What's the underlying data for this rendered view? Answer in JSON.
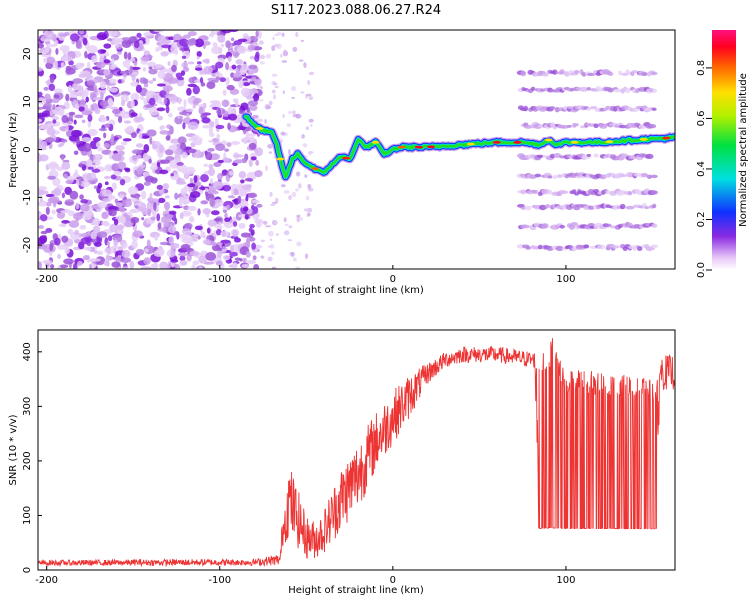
{
  "title": "S117.2023.088.06.27.R24",
  "chart_data": [
    {
      "type": "heatmap",
      "xlabel": "Height of straight line (km)",
      "ylabel": "Frequency (Hz)",
      "xlim": [
        -205,
        163
      ],
      "ylim": [
        -25,
        25
      ],
      "xticks": [
        -200,
        -100,
        0,
        100
      ],
      "yticks": [
        -20,
        -10,
        0,
        10,
        20
      ],
      "colorbar": {
        "label": "Normalized spectral amplitude",
        "range": [
          0,
          0.95
        ],
        "ticks": [
          0.0,
          0.2,
          0.4,
          0.6,
          0.8
        ]
      },
      "noise_region_x": [
        -205,
        -77
      ],
      "ridge": [
        [
          -85,
          7
        ],
        [
          -80,
          5
        ],
        [
          -75,
          4
        ],
        [
          -70,
          3.5
        ],
        [
          -67,
          1
        ],
        [
          -65,
          -2
        ],
        [
          -62,
          -6
        ],
        [
          -58,
          -2
        ],
        [
          -55,
          -1
        ],
        [
          -50,
          -3
        ],
        [
          -45,
          -4
        ],
        [
          -40,
          -5
        ],
        [
          -35,
          -3
        ],
        [
          -30,
          -1.5
        ],
        [
          -25,
          -2
        ],
        [
          -20,
          2
        ],
        [
          -15,
          0.5
        ],
        [
          -10,
          1.5
        ],
        [
          -5,
          -1
        ],
        [
          0,
          0
        ],
        [
          5,
          0.5
        ],
        [
          20,
          0.5
        ],
        [
          40,
          1
        ],
        [
          60,
          1.5
        ],
        [
          75,
          1.5
        ],
        [
          85,
          1
        ],
        [
          90,
          2
        ],
        [
          95,
          1
        ],
        [
          100,
          1.5
        ],
        [
          120,
          1.5
        ],
        [
          140,
          2
        ],
        [
          163,
          2.5
        ]
      ],
      "harmonic_x": [
        74,
        152
      ],
      "harmonic_y": [
        -20.5,
        -16,
        -12,
        -9,
        -5.5,
        -1.5,
        5,
        8.5,
        12.5,
        16
      ]
    },
    {
      "type": "line",
      "color": "#ee3333",
      "xlabel": "Height of straight line (km)",
      "ylabel": "SNR (10 * v/v)",
      "xlim": [
        -205,
        163
      ],
      "ylim": [
        0,
        440
      ],
      "xticks": [
        -200,
        -100,
        0,
        100
      ],
      "yticks": [
        0,
        100,
        200,
        300,
        400
      ],
      "envelope": [
        [
          -205,
          8,
          18
        ],
        [
          -120,
          8,
          20
        ],
        [
          -80,
          8,
          20
        ],
        [
          -65,
          8,
          30
        ],
        [
          -64,
          40,
          90
        ],
        [
          -60,
          60,
          200
        ],
        [
          -55,
          40,
          150
        ],
        [
          -50,
          20,
          100
        ],
        [
          -45,
          20,
          90
        ],
        [
          -40,
          30,
          110
        ],
        [
          -30,
          70,
          190
        ],
        [
          -20,
          110,
          240
        ],
        [
          -10,
          180,
          290
        ],
        [
          0,
          230,
          330
        ],
        [
          10,
          280,
          360
        ],
        [
          20,
          340,
          380
        ],
        [
          30,
          370,
          400
        ],
        [
          40,
          380,
          410
        ],
        [
          60,
          380,
          410
        ],
        [
          70,
          375,
          405
        ],
        [
          82,
          370,
          400
        ],
        [
          84,
          70,
          380
        ],
        [
          92,
          70,
          430
        ],
        [
          100,
          70,
          370
        ],
        [
          130,
          70,
          360
        ],
        [
          150,
          70,
          350
        ],
        [
          153,
          70,
          350
        ],
        [
          154,
          330,
          395
        ],
        [
          163,
          330,
          395
        ]
      ]
    }
  ]
}
